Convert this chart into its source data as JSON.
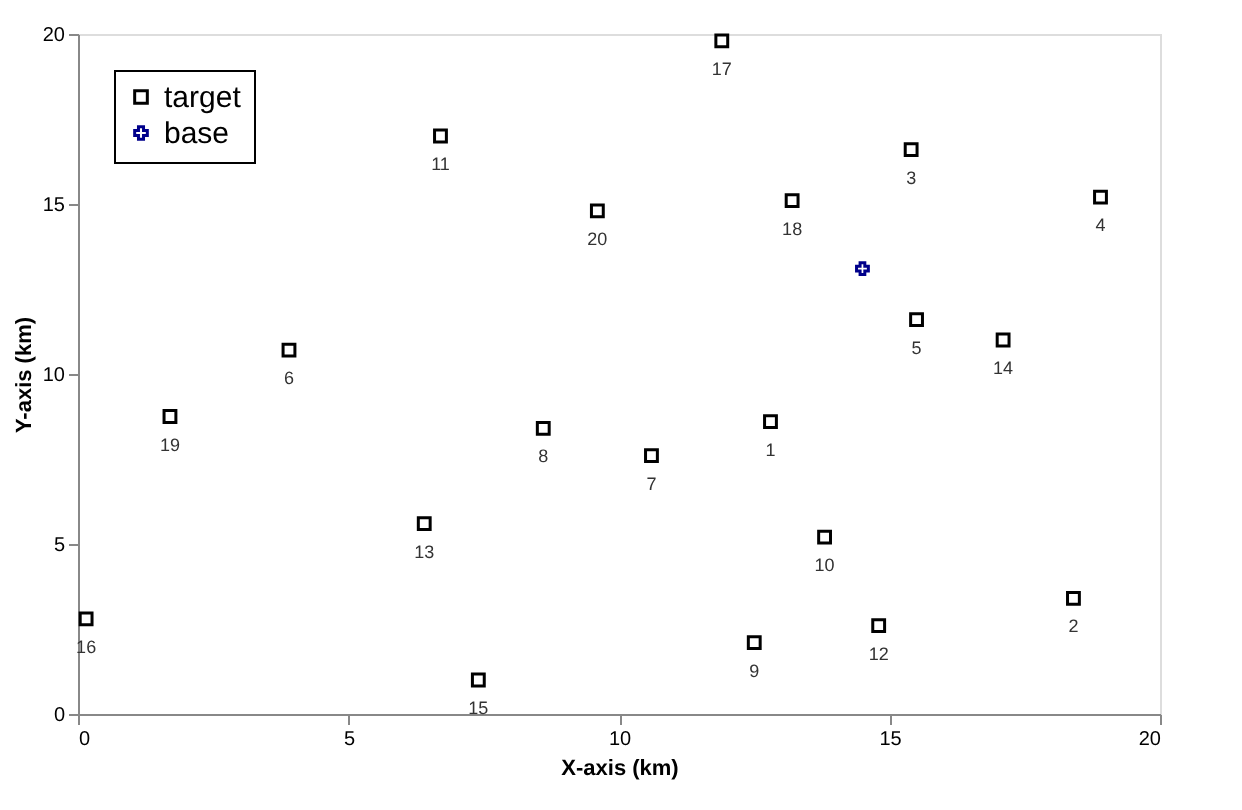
{
  "chart_data": {
    "type": "scatter",
    "xlabel": "X-axis (km)",
    "ylabel": "Y-axis (km)",
    "xlim": [
      0,
      20
    ],
    "ylim": [
      0,
      20
    ],
    "xticks": [
      0,
      5,
      10,
      15,
      20
    ],
    "yticks": [
      0,
      5,
      10,
      15,
      20
    ],
    "grid": false,
    "legend": "top left",
    "series": [
      {
        "name": "target",
        "color": "#000000",
        "marker": "square",
        "x": [
          12.8,
          18.4,
          15.4,
          18.9,
          15.5,
          3.9,
          10.6,
          8.6,
          12.5,
          13.8,
          6.7,
          14.8,
          6.4,
          17.1,
          7.4,
          0.15,
          11.9,
          13.2,
          1.7,
          9.6
        ],
        "values": [
          8.6,
          3.4,
          16.6,
          15.2,
          11.6,
          10.7,
          7.6,
          8.4,
          2.1,
          5.2,
          17.0,
          2.6,
          5.6,
          11.0,
          1.0,
          2.8,
          19.8,
          15.1,
          8.75,
          14.8
        ]
      },
      {
        "name": "base",
        "color": "#00008b",
        "marker": "cross",
        "x": [
          14.5
        ],
        "values": [
          13.1
        ]
      }
    ],
    "annotations": [
      {
        "text": "1",
        "x": 12.8,
        "y": 8.6
      },
      {
        "text": "2",
        "x": 18.4,
        "y": 3.4
      },
      {
        "text": "3",
        "x": 15.4,
        "y": 16.6
      },
      {
        "text": "4",
        "x": 18.9,
        "y": 15.2
      },
      {
        "text": "5",
        "x": 15.5,
        "y": 11.6
      },
      {
        "text": "6",
        "x": 3.9,
        "y": 10.7
      },
      {
        "text": "7",
        "x": 10.6,
        "y": 7.6
      },
      {
        "text": "8",
        "x": 8.6,
        "y": 8.4
      },
      {
        "text": "9",
        "x": 12.5,
        "y": 2.1
      },
      {
        "text": "10",
        "x": 13.8,
        "y": 5.2
      },
      {
        "text": "11",
        "x": 6.7,
        "y": 17.0
      },
      {
        "text": "12",
        "x": 14.8,
        "y": 2.6
      },
      {
        "text": "13",
        "x": 6.4,
        "y": 5.6
      },
      {
        "text": "14",
        "x": 17.1,
        "y": 11.0
      },
      {
        "text": "15",
        "x": 7.4,
        "y": 1.0
      },
      {
        "text": "16",
        "x": 0.15,
        "y": 2.8
      },
      {
        "text": "17",
        "x": 11.9,
        "y": 19.8
      },
      {
        "text": "18",
        "x": 13.2,
        "y": 15.1
      },
      {
        "text": "19",
        "x": 1.7,
        "y": 8.75
      },
      {
        "text": "20",
        "x": 9.6,
        "y": 14.8
      }
    ]
  }
}
